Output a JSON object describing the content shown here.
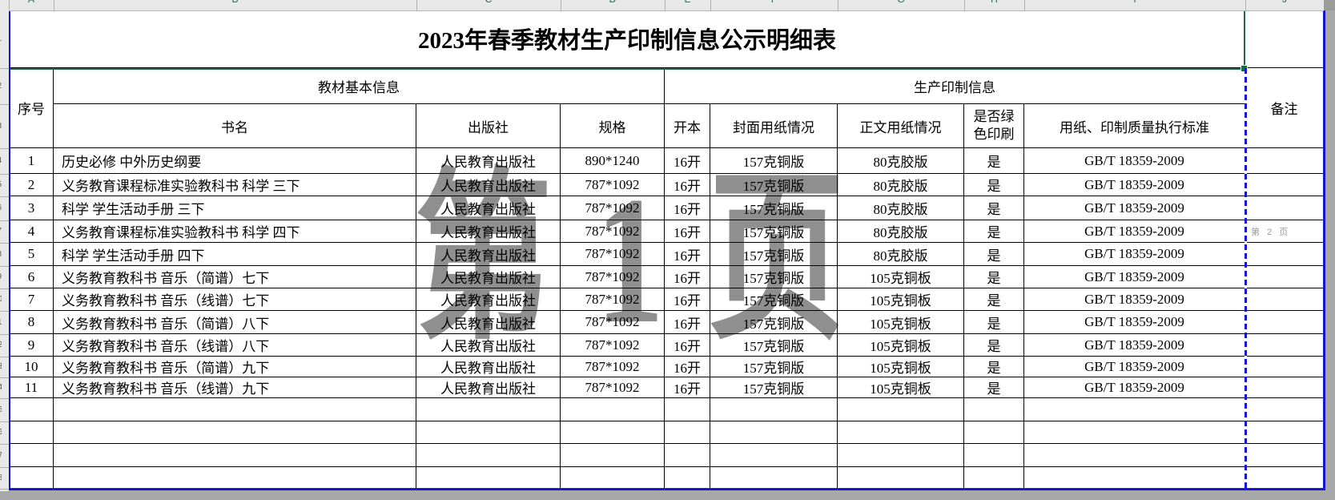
{
  "window": {
    "watermark_page1": "第 1 页",
    "watermark_page2": "第 2 页",
    "column_headers": [
      "A",
      "B",
      "C",
      "D",
      "E",
      "F",
      "G",
      "H",
      "I",
      "J"
    ],
    "row_headers": [
      "1",
      "2",
      "3",
      "4",
      "5",
      "6",
      "7",
      "8",
      "9",
      "10",
      "11",
      "12",
      "13",
      "14",
      "15",
      "16",
      "17",
      "18"
    ]
  },
  "colors": {
    "selection_green": "#1a6b43",
    "page_break_blue": "#1515cf",
    "watermark_gray": "#8f8f8f",
    "outside_gray": "#a8a8a8"
  },
  "sheet": {
    "title": "2023年春季教材生产印制信息公示明细表",
    "header": {
      "index": "序号",
      "basic_info_group": "教材基本信息",
      "production_group": "生产印制信息",
      "remark": "备注",
      "columns": [
        "书名",
        "出版社",
        "规格",
        "开本",
        "封面用纸情况",
        "正文用纸情况",
        "是否绿色印刷",
        "用纸、印制质量执行标准"
      ]
    },
    "rows": [
      {
        "no": "1",
        "name": "历史必修 中外历史纲要",
        "publisher": "人民教育出版社",
        "spec": "890*1240",
        "format": "16开",
        "cover": "157克铜版",
        "body": "80克胶版",
        "green": "是",
        "standard": "GB/T 18359-2009",
        "remark": ""
      },
      {
        "no": "2",
        "name": "义务教育课程标准实验教科书 科学 三下",
        "publisher": "人民教育出版社",
        "spec": "787*1092",
        "format": "16开",
        "cover": "157克铜版",
        "body": "80克胶版",
        "green": "是",
        "standard": "GB/T 18359-2009",
        "remark": ""
      },
      {
        "no": "3",
        "name": "科学 学生活动手册 三下",
        "publisher": "人民教育出版社",
        "spec": "787*1092",
        "format": "16开",
        "cover": "157克铜版",
        "body": "80克胶版",
        "green": "是",
        "standard": "GB/T 18359-2009",
        "remark": ""
      },
      {
        "no": "4",
        "name": "义务教育课程标准实验教科书 科学 四下",
        "publisher": "人民教育出版社",
        "spec": "787*1092",
        "format": "16开",
        "cover": "157克铜版",
        "body": "80克胶版",
        "green": "是",
        "standard": "GB/T 18359-2009",
        "remark": ""
      },
      {
        "no": "5",
        "name": "科学 学生活动手册 四下",
        "publisher": "人民教育出版社",
        "spec": "787*1092",
        "format": "16开",
        "cover": "157克铜版",
        "body": "80克胶版",
        "green": "是",
        "standard": "GB/T 18359-2009",
        "remark": ""
      },
      {
        "no": "6",
        "name": "义务教育教科书 音乐（简谱）七下",
        "publisher": "人民教育出版社",
        "spec": "787*1092",
        "format": "16开",
        "cover": "157克铜版",
        "body": "105克铜板",
        "green": "是",
        "standard": "GB/T 18359-2009",
        "remark": ""
      },
      {
        "no": "7",
        "name": "义务教育教科书 音乐（线谱）七下",
        "publisher": "人民教育出版社",
        "spec": "787*1092",
        "format": "16开",
        "cover": "157克铜版",
        "body": "105克铜板",
        "green": "是",
        "standard": "GB/T 18359-2009",
        "remark": ""
      },
      {
        "no": "8",
        "name": "义务教育教科书 音乐（简谱）八下",
        "publisher": "人民教育出版社",
        "spec": "787*1092",
        "format": "16开",
        "cover": "157克铜版",
        "body": "105克铜板",
        "green": "是",
        "standard": "GB/T 18359-2009",
        "remark": ""
      },
      {
        "no": "9",
        "name": "义务教育教科书 音乐（线谱）八下",
        "publisher": "人民教育出版社",
        "spec": "787*1092",
        "format": "16开",
        "cover": "157克铜版",
        "body": "105克铜板",
        "green": "是",
        "standard": "GB/T 18359-2009",
        "remark": ""
      },
      {
        "no": "10",
        "name": "义务教育教科书 音乐（简谱）九下",
        "publisher": "人民教育出版社",
        "spec": "787*1092",
        "format": "16开",
        "cover": "157克铜版",
        "body": "105克铜板",
        "green": "是",
        "standard": "GB/T 18359-2009",
        "remark": ""
      },
      {
        "no": "11",
        "name": "义务教育教科书 音乐（线谱）九下",
        "publisher": "人民教育出版社",
        "spec": "787*1092",
        "format": "16开",
        "cover": "157克铜版",
        "body": "105克铜板",
        "green": "是",
        "standard": "GB/T 18359-2009",
        "remark": ""
      }
    ],
    "empty_row_count": 4
  }
}
